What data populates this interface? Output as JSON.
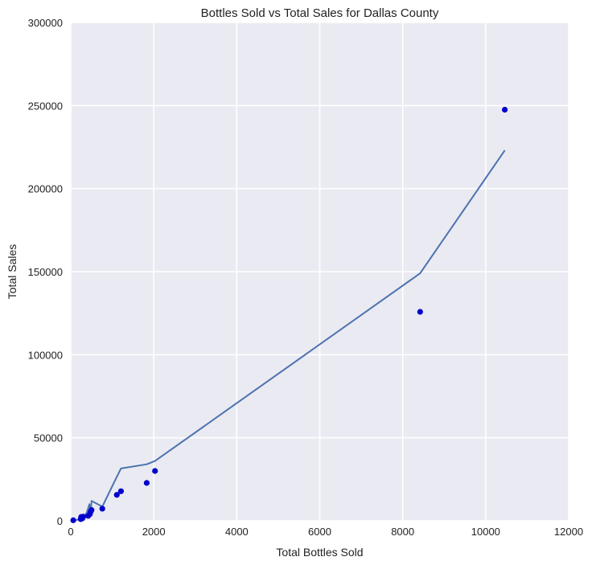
{
  "chart_data": {
    "type": "scatter",
    "title": "Bottles Sold vs Total Sales for Dallas County",
    "xlabel": "Total Bottles Sold",
    "ylabel": "Total Sales",
    "xlim": [
      0,
      12000
    ],
    "ylim": [
      0,
      300000
    ],
    "xticks": [
      0,
      2000,
      4000,
      6000,
      8000,
      10000,
      12000
    ],
    "yticks": [
      0,
      50000,
      100000,
      150000,
      200000,
      250000,
      300000
    ],
    "xtick_labels": [
      "0",
      "2000",
      "4000",
      "6000",
      "8000",
      "10000",
      "12000"
    ],
    "ytick_labels": [
      "0",
      "50000",
      "100000",
      "150000",
      "200000",
      "250000",
      "300000"
    ],
    "grid": true,
    "colors": {
      "plot_background": "#eaeaf2",
      "grid": "#ffffff",
      "points": "#0000cc",
      "line": "#4c72b0"
    },
    "series": [
      {
        "kind": "scatter",
        "x": [
          60,
          240,
          250,
          280,
          300,
          420,
          460,
          480,
          500,
          760,
          1110,
          1210,
          1830,
          2030,
          8420,
          10460
        ],
        "y": [
          300,
          1000,
          2300,
          1500,
          2500,
          3000,
          4000,
          5500,
          6500,
          7300,
          15600,
          17800,
          22800,
          30000,
          125800,
          247500
        ]
      },
      {
        "kind": "line",
        "x": [
          60,
          240,
          280,
          350,
          400,
          450,
          480,
          500,
          760,
          1100,
          1210,
          1830,
          2030,
          8420,
          10460
        ],
        "y": [
          200,
          1000,
          2000,
          3000,
          6000,
          10000,
          4500,
          12000,
          8500,
          26000,
          31500,
          34000,
          36000,
          149000,
          223000
        ]
      }
    ]
  }
}
